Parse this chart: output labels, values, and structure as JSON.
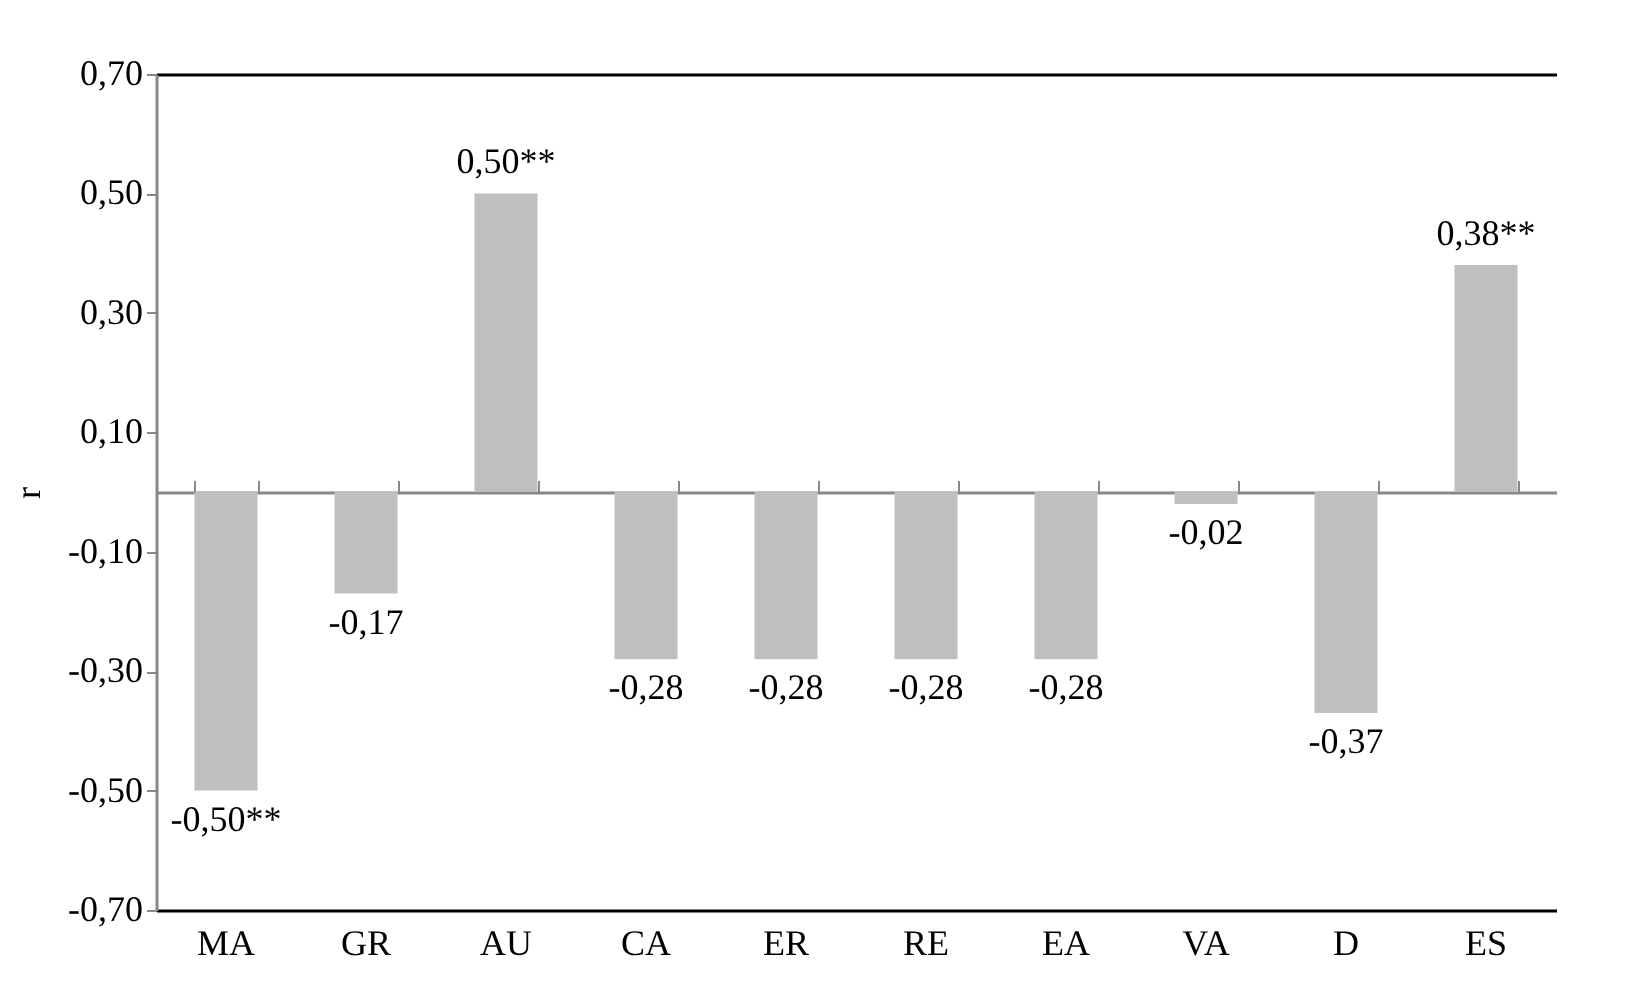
{
  "chart_data": {
    "type": "bar",
    "ylabel": "r",
    "categories": [
      "MA",
      "GR",
      "AU",
      "CA",
      "ER",
      "RE",
      "EA",
      "VA",
      "D",
      "ES"
    ],
    "values": [
      -0.5,
      -0.17,
      0.5,
      -0.28,
      -0.28,
      -0.28,
      -0.28,
      -0.02,
      -0.37,
      0.38
    ],
    "value_labels": [
      "-0,50**",
      "-0,17",
      "0,50**",
      "-0,28",
      "-0,28",
      "-0,28",
      "-0,28",
      "-0,02",
      "-0,37",
      "0,38**"
    ],
    "color": "#bfbfbf",
    "ylim": [
      -0.7,
      0.7
    ],
    "yticks": [
      {
        "value": -0.7,
        "label": "-0,70"
      },
      {
        "value": -0.5,
        "label": "-0,50"
      },
      {
        "value": -0.3,
        "label": "-0,30"
      },
      {
        "value": -0.1,
        "label": "-0,10"
      },
      {
        "value": 0.1,
        "label": "0,10"
      },
      {
        "value": 0.3,
        "label": "0,30"
      },
      {
        "value": 0.5,
        "label": "0,50"
      },
      {
        "value": 0.7,
        "label": "0,70"
      }
    ],
    "grid": false
  }
}
